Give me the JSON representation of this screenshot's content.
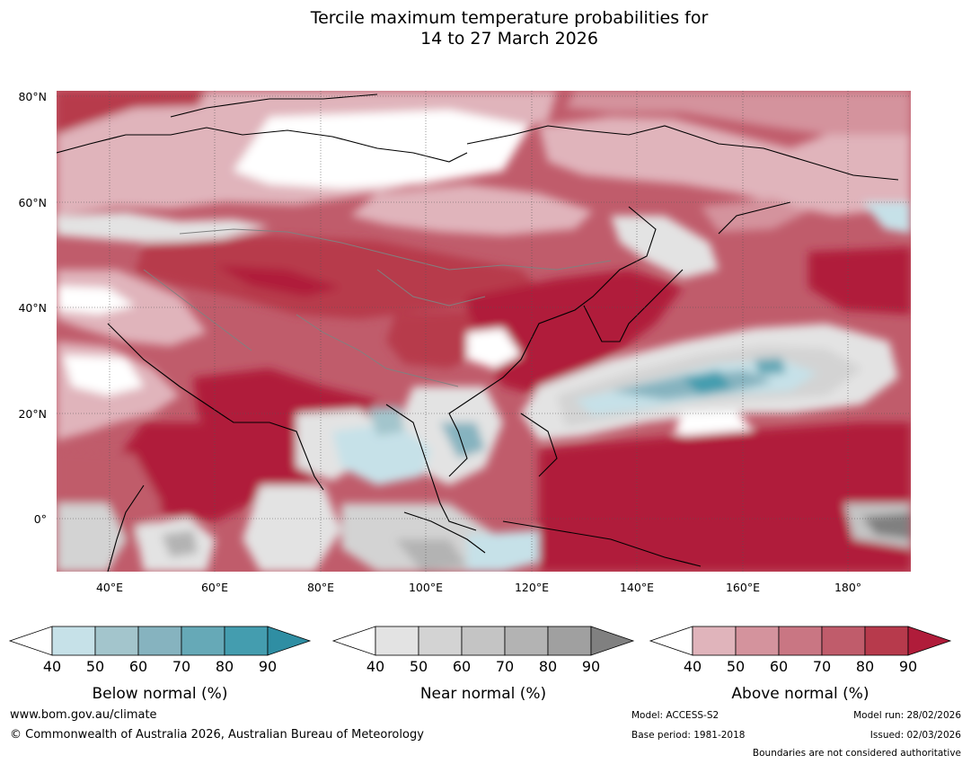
{
  "title": {
    "line1": "Tercile maximum temperature probabilities for",
    "line2": "14 to 27 March 2026"
  },
  "map": {
    "lat_labels": [
      "80°N",
      "60°N",
      "40°N",
      "20°N",
      "0°"
    ],
    "lon_labels": [
      "40°E",
      "60°E",
      "80°E",
      "100°E",
      "120°E",
      "140°E",
      "160°E",
      "180°"
    ],
    "extent": {
      "lon": [
        30,
        192
      ],
      "lat": [
        -10,
        80
      ]
    }
  },
  "colorbars": [
    {
      "name": "below",
      "label": "Below normal (%)",
      "ticks": [
        "40",
        "50",
        "60",
        "70",
        "80",
        "90"
      ],
      "colors": [
        "#ffffff",
        "#c6e1e8",
        "#a3c5cc",
        "#86b3bf",
        "#66a9b7",
        "#449daf",
        "#2f8ea3"
      ]
    },
    {
      "name": "near",
      "label": "Near normal (%)",
      "ticks": [
        "40",
        "50",
        "60",
        "70",
        "80",
        "90"
      ],
      "colors": [
        "#ffffff",
        "#e3e3e3",
        "#d3d3d3",
        "#c4c4c4",
        "#b3b3b3",
        "#a0a0a0",
        "#808080"
      ]
    },
    {
      "name": "above",
      "label": "Above normal (%)",
      "ticks": [
        "40",
        "50",
        "60",
        "70",
        "80",
        "90"
      ],
      "colors": [
        "#ffffff",
        "#e0b4bb",
        "#d4939d",
        "#c97683",
        "#c05c6b",
        "#b73a4c",
        "#b01c3a"
      ]
    }
  ],
  "footer": {
    "website": "www.bom.gov.au/climate",
    "copyright": "© Commonwealth of Australia 2026, Australian Bureau of Meteorology",
    "model": "Model: ACCESS-S2",
    "base_period": "Base period: 1981-2018",
    "model_run": "Model run: 28/02/2026",
    "issued": "Issued: 02/03/2026",
    "disclaimer": "Boundaries are not considered authoritative"
  }
}
